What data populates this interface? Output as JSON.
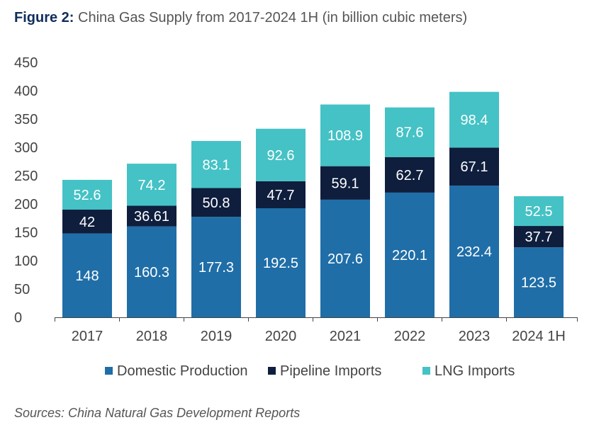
{
  "figure": {
    "label": "Figure 2:",
    "title": "China Gas Supply from 2017-2024 1H (in billion cubic meters)"
  },
  "source": "Sources: China Natural Gas Development Reports",
  "colors": {
    "domestic": "#1f6ea8",
    "pipeline": "#0f1e3d",
    "lng": "#45c2c5",
    "axis": "#444444"
  },
  "chart_data": {
    "type": "bar",
    "stacked": true,
    "categories": [
      "2017",
      "2018",
      "2019",
      "2020",
      "2021",
      "2022",
      "2023",
      "2024 1H"
    ],
    "series": [
      {
        "name": "Domestic Production",
        "values": [
          148,
          160.3,
          177.3,
          192.5,
          207.6,
          220.1,
          232.4,
          123.5
        ],
        "labels": [
          "148",
          "160.3",
          "177.3",
          "192.5",
          "207.6",
          "220.1",
          "232.4",
          "123.5"
        ]
      },
      {
        "name": "Pipeline Imports",
        "values": [
          42,
          36.61,
          50.8,
          47.7,
          59.1,
          62.7,
          67.1,
          37.7
        ],
        "labels": [
          "42",
          "36.61",
          "50.8",
          "47.7",
          "59.1",
          "62.7",
          "67.1",
          "37.7"
        ]
      },
      {
        "name": "LNG Imports",
        "values": [
          52.6,
          74.2,
          83.1,
          92.6,
          108.9,
          87.6,
          98.4,
          52.5
        ],
        "labels": [
          "52.6",
          "74.2",
          "83.1",
          "92.6",
          "108.9",
          "87.6",
          "98.4",
          "52.5"
        ]
      }
    ],
    "yticks": [
      "0",
      "50",
      "100",
      "150",
      "200",
      "250",
      "300",
      "350",
      "400",
      "450"
    ],
    "ylim": [
      0,
      450
    ],
    "grid": false,
    "legend_position": "bottom"
  }
}
